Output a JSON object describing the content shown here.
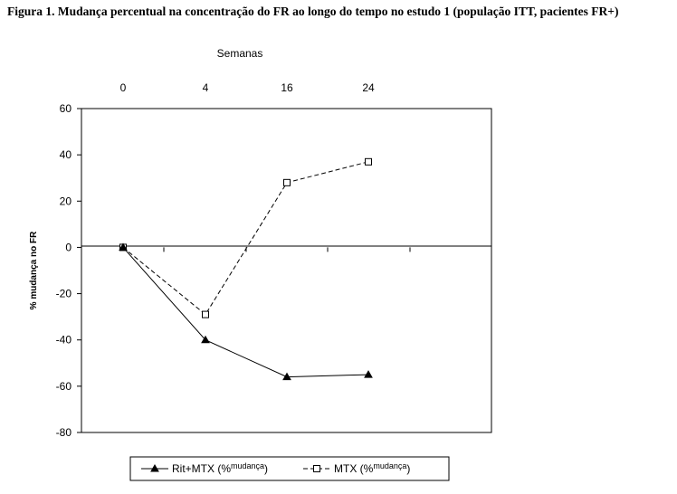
{
  "figure_title": "Figura 1. Mudança percentual na concentração do FR ao longo do tempo no estudo 1 (população ITT, pacientes FR+)",
  "chart_data": {
    "type": "line",
    "title": "",
    "xlabel": "Semanas",
    "ylabel": "% mudança no FR",
    "categories": [
      "0",
      "4",
      "16",
      "24"
    ],
    "ylim": [
      -80,
      60
    ],
    "yticks": [
      60,
      40,
      20,
      0,
      -20,
      -40,
      -60,
      -80
    ],
    "x_axis_position": "top",
    "grid": false,
    "legend_position": "bottom",
    "series": [
      {
        "name": "Rit+MTX",
        "legend_suffix": "(%",
        "legend_sup": "mudança",
        "legend_close": ")",
        "values": [
          0,
          -40,
          -56,
          -55
        ],
        "line_style": "solid",
        "marker": "filled-triangle",
        "color": "#000000"
      },
      {
        "name": "MTX",
        "legend_suffix": "(%",
        "legend_sup": "mudança",
        "legend_close": ")",
        "values": [
          0,
          -29,
          28,
          37
        ],
        "line_style": "dashed",
        "marker": "open-square",
        "color": "#000000"
      }
    ]
  }
}
